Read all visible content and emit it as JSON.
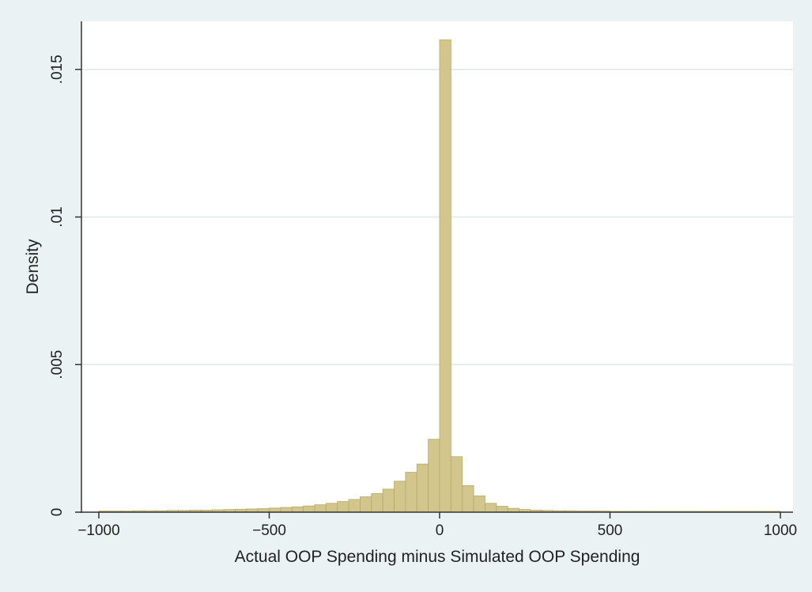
{
  "chart_data": {
    "type": "bar",
    "subtype": "histogram",
    "title": "",
    "xlabel": "Actual OOP Spending minus Simulated OOP Spending",
    "ylabel": "Density",
    "xlim": [
      -1000,
      1000
    ],
    "ylim": [
      0,
      0.0162
    ],
    "x_ticks": [
      -1000,
      -500,
      0,
      500,
      1000
    ],
    "x_tick_labels": [
      "−1000",
      "−500",
      "0",
      "500",
      "1000"
    ],
    "y_ticks": [
      0,
      0.005,
      0.01,
      0.015
    ],
    "y_tick_labels": [
      "0",
      ".005",
      ".01",
      ".015"
    ],
    "grid": true,
    "legend": "none",
    "bar_color": "#d2c68c",
    "bar_edge_color": "#b5a96a",
    "bin_width": 33.3,
    "bins": [
      {
        "x0": -1000,
        "x1": -966.7,
        "value": 4e-05
      },
      {
        "x0": -966.7,
        "x1": -933.3,
        "value": 4e-05
      },
      {
        "x0": -933.3,
        "x1": -900,
        "value": 4e-05
      },
      {
        "x0": -900,
        "x1": -866.7,
        "value": 5e-05
      },
      {
        "x0": -866.7,
        "x1": -833.3,
        "value": 5e-05
      },
      {
        "x0": -833.3,
        "x1": -800,
        "value": 5e-05
      },
      {
        "x0": -800,
        "x1": -766.7,
        "value": 6e-05
      },
      {
        "x0": -766.7,
        "x1": -733.3,
        "value": 6e-05
      },
      {
        "x0": -733.3,
        "x1": -700,
        "value": 7e-05
      },
      {
        "x0": -700,
        "x1": -666.7,
        "value": 7e-05
      },
      {
        "x0": -666.7,
        "x1": -633.3,
        "value": 8e-05
      },
      {
        "x0": -633.3,
        "x1": -600,
        "value": 9e-05
      },
      {
        "x0": -600,
        "x1": -566.7,
        "value": 0.0001
      },
      {
        "x0": -566.7,
        "x1": -533.3,
        "value": 0.00011
      },
      {
        "x0": -533.3,
        "x1": -500,
        "value": 0.00012
      },
      {
        "x0": -500,
        "x1": -466.7,
        "value": 0.00014
      },
      {
        "x0": -466.7,
        "x1": -433.3,
        "value": 0.00016
      },
      {
        "x0": -433.3,
        "x1": -400,
        "value": 0.00018
      },
      {
        "x0": -400,
        "x1": -366.7,
        "value": 0.00021
      },
      {
        "x0": -366.7,
        "x1": -333.3,
        "value": 0.00025
      },
      {
        "x0": -333.3,
        "x1": -300,
        "value": 0.0003
      },
      {
        "x0": -300,
        "x1": -266.7,
        "value": 0.00036
      },
      {
        "x0": -266.7,
        "x1": -233.3,
        "value": 0.00043
      },
      {
        "x0": -233.3,
        "x1": -200,
        "value": 0.00052
      },
      {
        "x0": -200,
        "x1": -166.7,
        "value": 0.00063
      },
      {
        "x0": -166.7,
        "x1": -133.3,
        "value": 0.00078
      },
      {
        "x0": -133.3,
        "x1": -100,
        "value": 0.00105
      },
      {
        "x0": -100,
        "x1": -66.7,
        "value": 0.00135
      },
      {
        "x0": -66.7,
        "x1": -33.3,
        "value": 0.00163
      },
      {
        "x0": -33.3,
        "x1": 0,
        "value": 0.00247
      },
      {
        "x0": 0,
        "x1": 33.3,
        "value": 0.016
      },
      {
        "x0": 33.3,
        "x1": 66.7,
        "value": 0.00188
      },
      {
        "x0": 66.7,
        "x1": 100,
        "value": 0.0009
      },
      {
        "x0": 100,
        "x1": 133.3,
        "value": 0.00055
      },
      {
        "x0": 133.3,
        "x1": 166.7,
        "value": 0.0003
      },
      {
        "x0": 166.7,
        "x1": 200,
        "value": 0.0002
      },
      {
        "x0": 200,
        "x1": 233.3,
        "value": 0.00013
      },
      {
        "x0": 233.3,
        "x1": 266.7,
        "value": 9e-05
      },
      {
        "x0": 266.7,
        "x1": 300,
        "value": 7e-05
      },
      {
        "x0": 300,
        "x1": 333.3,
        "value": 6e-05
      },
      {
        "x0": 333.3,
        "x1": 366.7,
        "value": 5e-05
      },
      {
        "x0": 366.7,
        "x1": 400,
        "value": 5e-05
      },
      {
        "x0": 400,
        "x1": 433.3,
        "value": 4e-05
      },
      {
        "x0": 433.3,
        "x1": 466.7,
        "value": 4e-05
      },
      {
        "x0": 466.7,
        "x1": 500,
        "value": 4e-05
      },
      {
        "x0": 500,
        "x1": 533.3,
        "value": 3e-05
      },
      {
        "x0": 533.3,
        "x1": 566.7,
        "value": 3e-05
      },
      {
        "x0": 566.7,
        "x1": 600,
        "value": 3e-05
      },
      {
        "x0": 600,
        "x1": 633.3,
        "value": 3e-05
      },
      {
        "x0": 633.3,
        "x1": 666.7,
        "value": 3e-05
      },
      {
        "x0": 666.7,
        "x1": 700,
        "value": 3e-05
      },
      {
        "x0": 700,
        "x1": 733.3,
        "value": 3e-05
      },
      {
        "x0": 733.3,
        "x1": 766.7,
        "value": 3e-05
      },
      {
        "x0": 766.7,
        "x1": 800,
        "value": 3e-05
      },
      {
        "x0": 800,
        "x1": 833.3,
        "value": 3e-05
      },
      {
        "x0": 833.3,
        "x1": 866.7,
        "value": 3e-05
      },
      {
        "x0": 866.7,
        "x1": 900,
        "value": 3e-05
      },
      {
        "x0": 900,
        "x1": 933.3,
        "value": 3e-05
      },
      {
        "x0": 933.3,
        "x1": 966.7,
        "value": 3e-05
      },
      {
        "x0": 966.7,
        "x1": 1000,
        "value": 3e-05
      }
    ]
  }
}
